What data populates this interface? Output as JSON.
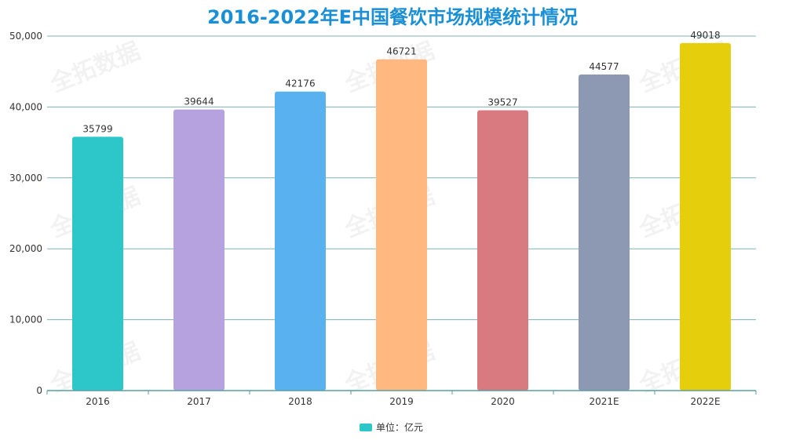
{
  "watermark_text": "全拓数据",
  "chart_data": {
    "type": "bar",
    "title": "2016-2022年E中国餐饮市场规模统计情况",
    "categories": [
      "2016",
      "2017",
      "2018",
      "2019",
      "2020",
      "2021E",
      "2022E"
    ],
    "series": [
      {
        "name": "单位：亿元",
        "values": [
          35799,
          39644,
          42176,
          46721,
          39527,
          44577,
          49018
        ],
        "value_labels": [
          "35799",
          "39644",
          "42176",
          "46721",
          "39527",
          "44577",
          "49018"
        ],
        "colors": [
          "#2ec7c9",
          "#b6a2de",
          "#5ab1ef",
          "#ffb980",
          "#d87a80",
          "#8d98b3",
          "#e5cf0d"
        ]
      }
    ],
    "ylim": [
      0,
      50000
    ],
    "yticks": [
      0,
      10000,
      20000,
      30000,
      40000,
      50000
    ],
    "ytick_labels": [
      "0",
      "10,000",
      "20,000",
      "30,000",
      "40,000",
      "50,000"
    ],
    "grid": true,
    "legend_position": "bottom-center",
    "axis_color": "#5a9ea0",
    "grid_color": "#7fb0b3"
  }
}
